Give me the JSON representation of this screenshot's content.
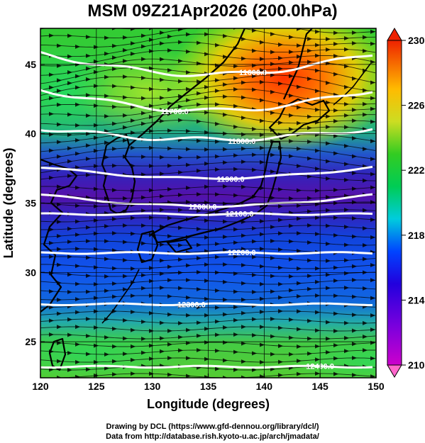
{
  "title": "MSM 09Z21Apr2026 (200.0hPa)",
  "map": {
    "xlabel": "Longitude (degrees)",
    "ylabel": "Latitude  (degrees)",
    "lon_ticks": [
      "120",
      "125",
      "130",
      "135",
      "140",
      "145",
      "150"
    ],
    "lat_ticks": [
      "25",
      "30",
      "35",
      "40",
      "45"
    ],
    "lon_range": [
      120,
      150
    ],
    "lat_range": [
      22.4,
      47.6
    ],
    "field": "temperature",
    "overlay": "geopotential height contours and wind streamlines"
  },
  "colorbar": {
    "ticks": [
      "210",
      "214",
      "218",
      "222",
      "226",
      "230"
    ],
    "range": [
      210,
      230
    ]
  },
  "contours": [
    {
      "label": "11600.0",
      "lat": 45.8
    },
    {
      "label": "11700.0",
      "lat": 43.2
    },
    {
      "label": "11800.0",
      "lat": 40.4
    },
    {
      "label": "11900.0",
      "lat": 37.6
    },
    {
      "label": "12000.0",
      "lat": 35.6
    },
    {
      "label": "12100.0",
      "lat": 34.2
    },
    {
      "label": "12200.0",
      "lat": 31.4
    },
    {
      "label": "12300.0",
      "lat": 27.7
    },
    {
      "label": "12400.0",
      "lat": 23.2
    }
  ],
  "credits": {
    "line1": "Drawing by DCL (https://www.gfd-dennou.org/library/dcl/)",
    "line2": "Data from http://database.rish.kyoto-u.ac.jp/arch/jmadata/"
  },
  "colors": {
    "land_outline": "#000000",
    "contour": "#ffffff",
    "streamline": "#000000"
  }
}
